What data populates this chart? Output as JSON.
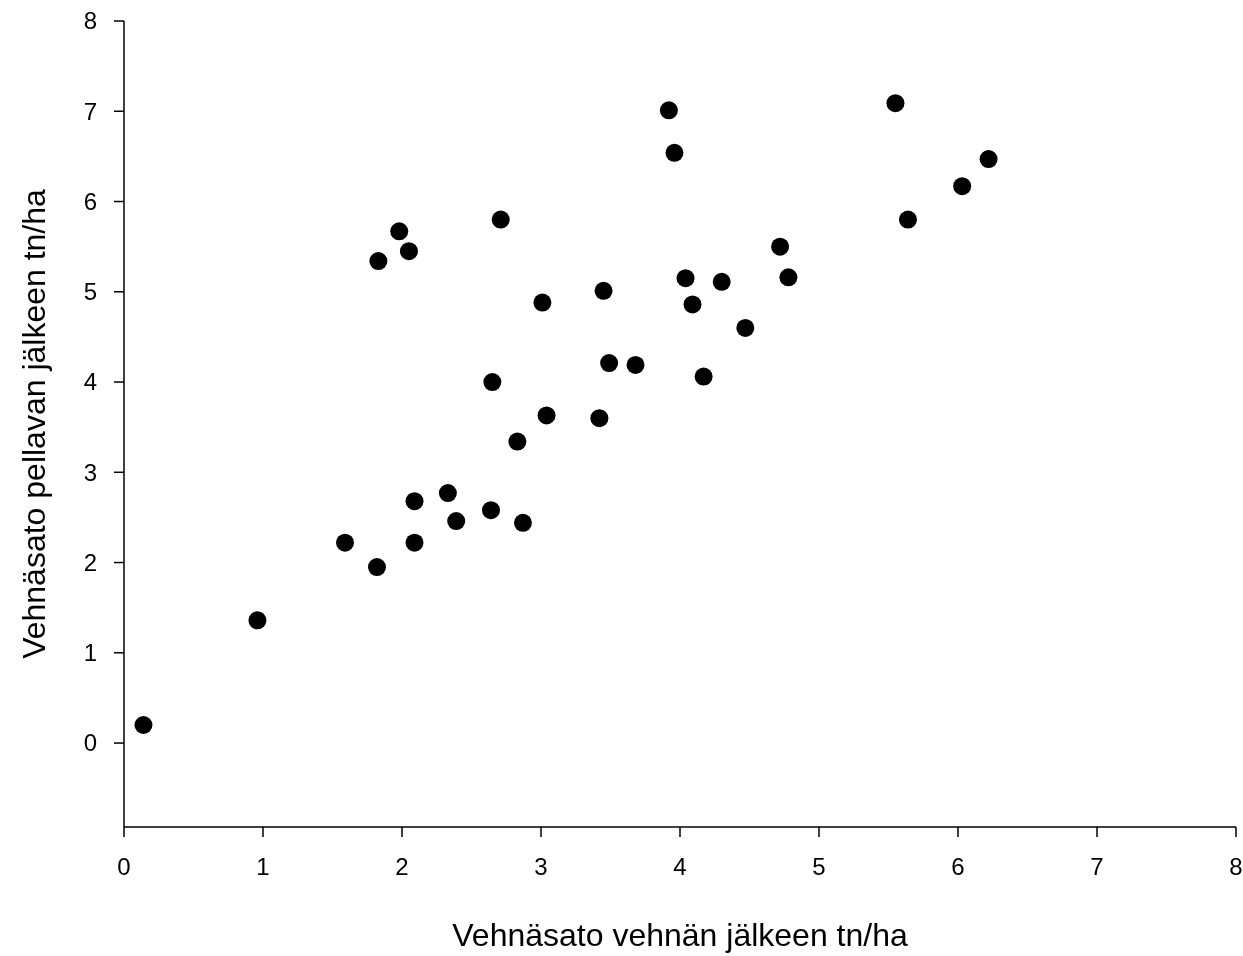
{
  "chart_data": {
    "type": "scatter",
    "xlabel": "Vehnäsato vehnän jälkeen tn/ha",
    "ylabel": "Vehnäsato pellavan jälkeen tn/ha",
    "xlim": [
      0,
      8
    ],
    "xticks": [
      0,
      1,
      2,
      3,
      4,
      5,
      6,
      7,
      8
    ],
    "ylim": [
      -0.93,
      8
    ],
    "yticks": [
      0,
      1,
      2,
      3,
      4,
      5,
      6,
      7,
      8
    ],
    "marker": "circle",
    "series": [
      {
        "color": "#000000",
        "x": [
          0.14,
          0.96,
          1.59,
          1.82,
          2.09,
          2.09,
          2.33,
          2.39,
          2.64,
          2.87,
          2.83,
          3.04,
          2.65,
          3.42,
          3.49,
          3.68,
          4.17,
          3.01,
          3.45,
          4.04,
          4.09,
          4.3,
          4.47,
          4.72,
          4.78,
          1.83,
          2.05,
          1.98,
          2.71,
          3.92,
          3.96,
          5.55,
          5.64,
          6.03,
          6.22
        ],
        "values": [
          0.2,
          1.36,
          2.22,
          1.95,
          2.22,
          2.68,
          2.77,
          2.46,
          2.58,
          2.44,
          3.34,
          3.63,
          4.0,
          3.6,
          4.21,
          4.19,
          4.06,
          4.88,
          5.01,
          5.15,
          4.86,
          5.11,
          4.6,
          5.5,
          5.16,
          5.34,
          5.45,
          5.67,
          5.8,
          7.01,
          6.54,
          7.09,
          5.8,
          6.17,
          6.47
        ]
      }
    ]
  }
}
